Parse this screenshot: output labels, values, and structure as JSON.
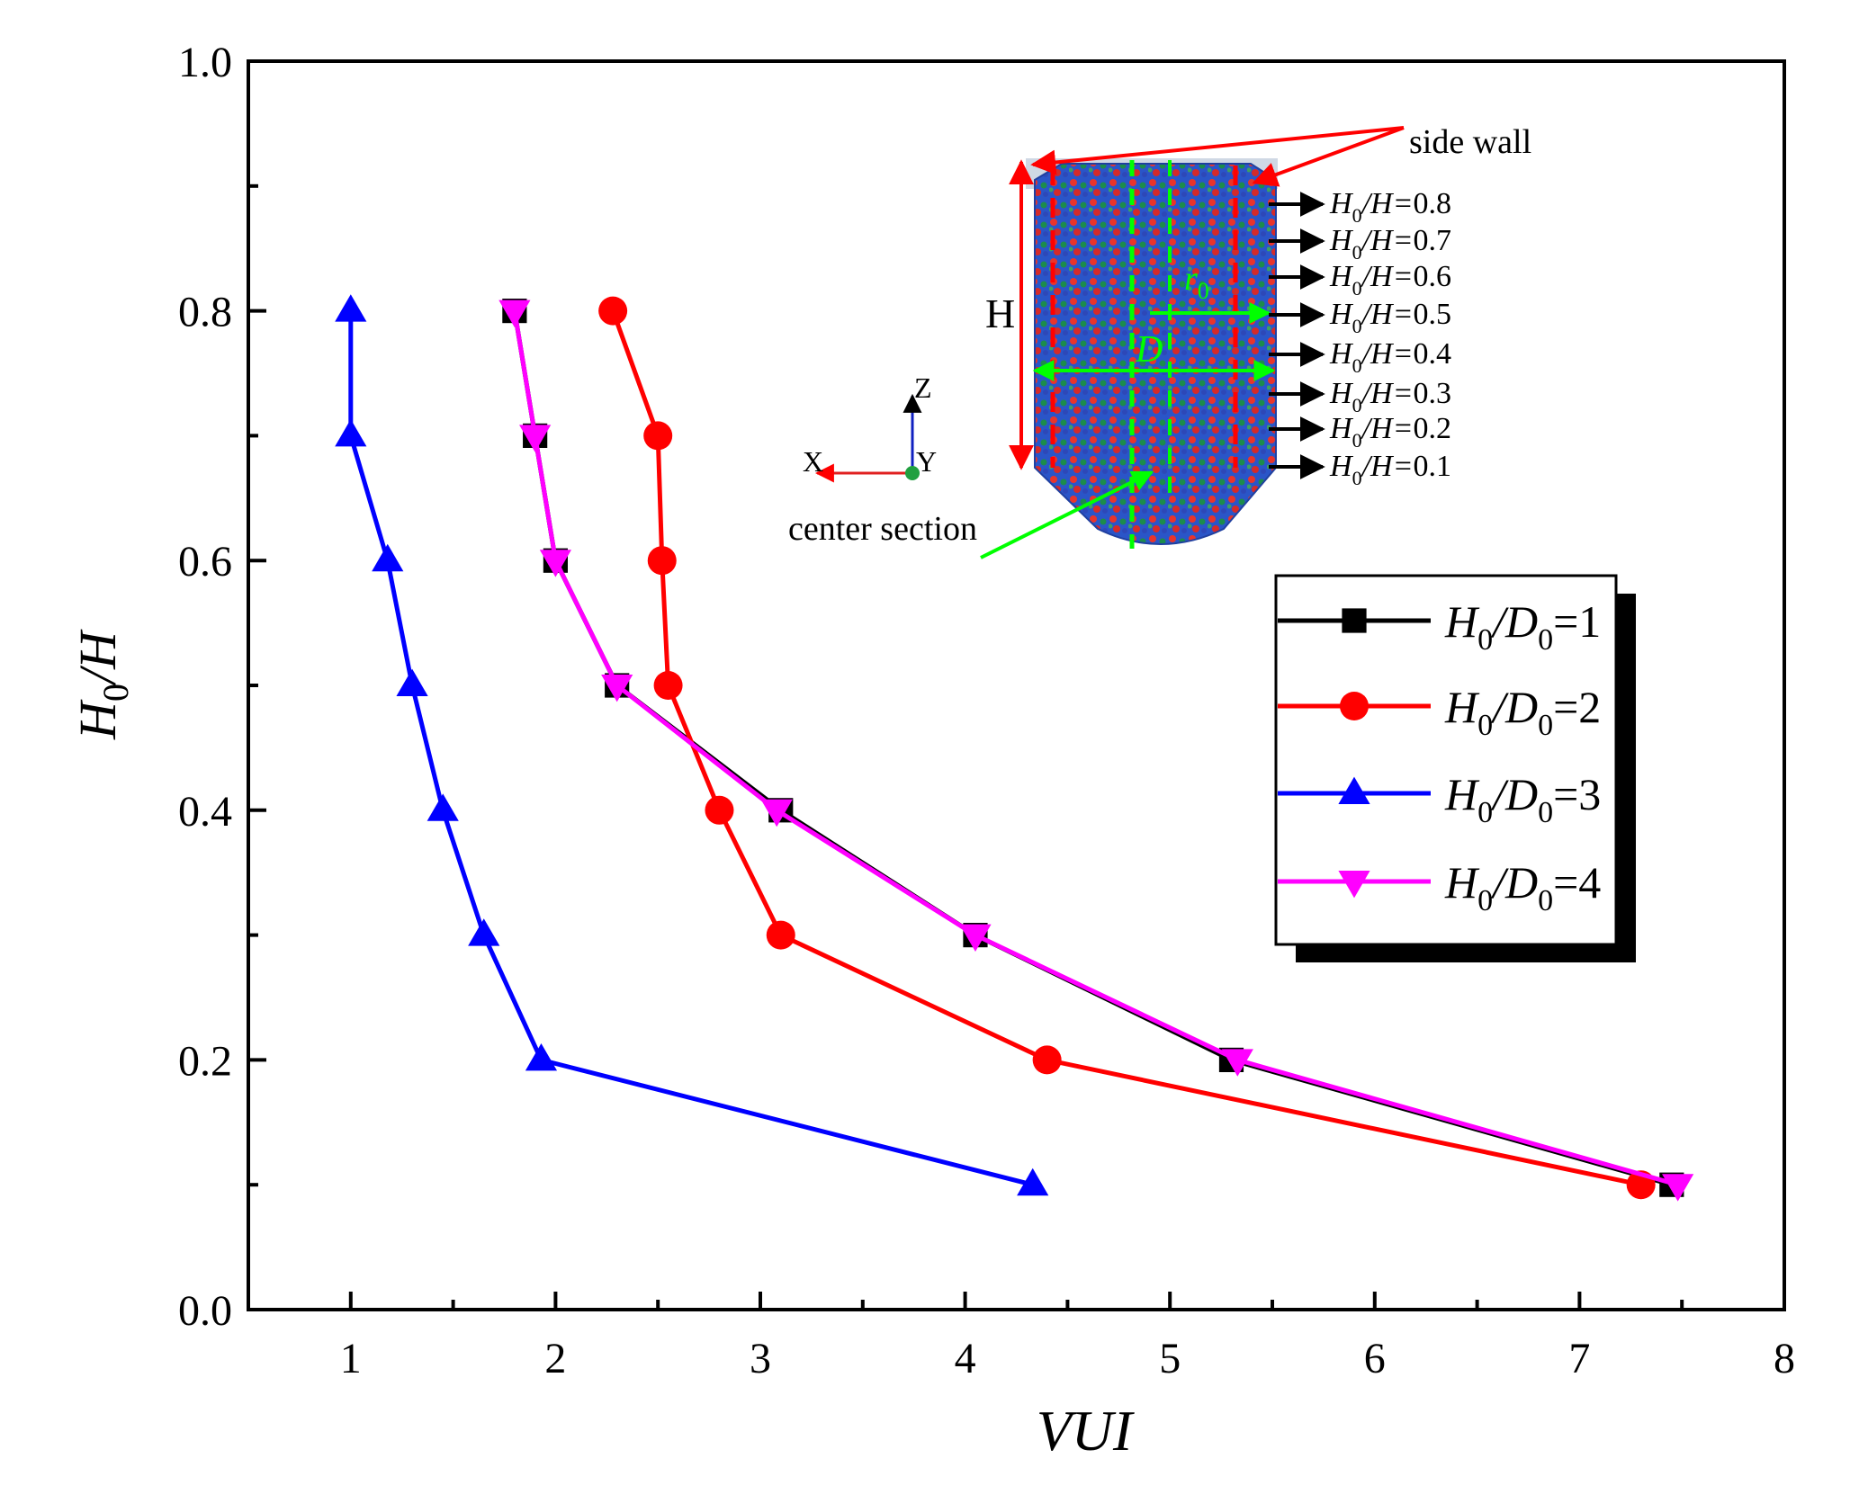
{
  "chart_data": {
    "type": "line",
    "xlabel": "VUI",
    "ylabel": {
      "main": "H",
      "sub": "0",
      "rest": "/H"
    },
    "xlim": [
      0.5,
      8
    ],
    "ylim": [
      0,
      1.0
    ],
    "xticks": [
      1,
      2,
      3,
      4,
      5,
      6,
      7,
      8
    ],
    "yticks": [
      0.0,
      0.2,
      0.4,
      0.6,
      0.8,
      1.0
    ],
    "xtick_labels": [
      "1",
      "2",
      "3",
      "4",
      "5",
      "6",
      "7",
      "8"
    ],
    "ytick_labels": [
      "0.0",
      "0.2",
      "0.4",
      "0.6",
      "0.8",
      "1.0"
    ],
    "series": [
      {
        "name": "H0/D0=1",
        "ratio": "1",
        "color": "#000000",
        "marker": "square",
        "points": [
          [
            1.8,
            0.8
          ],
          [
            1.9,
            0.7
          ],
          [
            2.0,
            0.6
          ],
          [
            2.3,
            0.5
          ],
          [
            3.1,
            0.4
          ],
          [
            4.05,
            0.3
          ],
          [
            5.3,
            0.2
          ],
          [
            7.45,
            0.1
          ]
        ]
      },
      {
        "name": "H0/D0=2",
        "ratio": "2",
        "color": "#ff0000",
        "marker": "circle",
        "points": [
          [
            2.28,
            0.8
          ],
          [
            2.5,
            0.7
          ],
          [
            2.52,
            0.6
          ],
          [
            2.55,
            0.5
          ],
          [
            2.8,
            0.4
          ],
          [
            3.1,
            0.3
          ],
          [
            4.4,
            0.2
          ],
          [
            7.3,
            0.1
          ]
        ]
      },
      {
        "name": "H0/D0=3",
        "ratio": "3",
        "color": "#0000ff",
        "marker": "triangle-up",
        "points": [
          [
            1.0,
            0.8
          ],
          [
            1.0,
            0.7
          ],
          [
            1.18,
            0.6
          ],
          [
            1.3,
            0.5
          ],
          [
            1.45,
            0.4
          ],
          [
            1.65,
            0.3
          ],
          [
            1.93,
            0.2
          ],
          [
            4.33,
            0.1
          ]
        ]
      },
      {
        "name": "H0/D0=4",
        "ratio": "4",
        "color": "#ff00ff",
        "marker": "triangle-down",
        "points": [
          [
            1.8,
            0.8
          ],
          [
            1.9,
            0.7
          ],
          [
            2.0,
            0.6
          ],
          [
            2.3,
            0.5
          ],
          [
            3.08,
            0.4
          ],
          [
            4.05,
            0.3
          ],
          [
            5.33,
            0.2
          ],
          [
            7.48,
            0.1
          ]
        ]
      }
    ],
    "legend": {
      "position": "right",
      "prefix_main": "H",
      "prefix_sub": "0",
      "mid_main": "/D",
      "mid_sub": "0",
      "eq": "="
    },
    "inset": {
      "side_wall_label": "side wall",
      "height_label": "H",
      "diameter_label": "D",
      "radius_label": "r",
      "radius_sub": "0",
      "center_section_label": "center section",
      "axis_labels": {
        "x": "X",
        "y": "Y",
        "z": "Z"
      },
      "level_labels": [
        "0.8",
        "0.7",
        "0.6",
        "0.5",
        "0.4",
        "0.3",
        "0.2",
        "0.1"
      ],
      "level_prefix_main": "H",
      "level_prefix_sub": "0",
      "level_prefix_rest": "/H="
    }
  }
}
